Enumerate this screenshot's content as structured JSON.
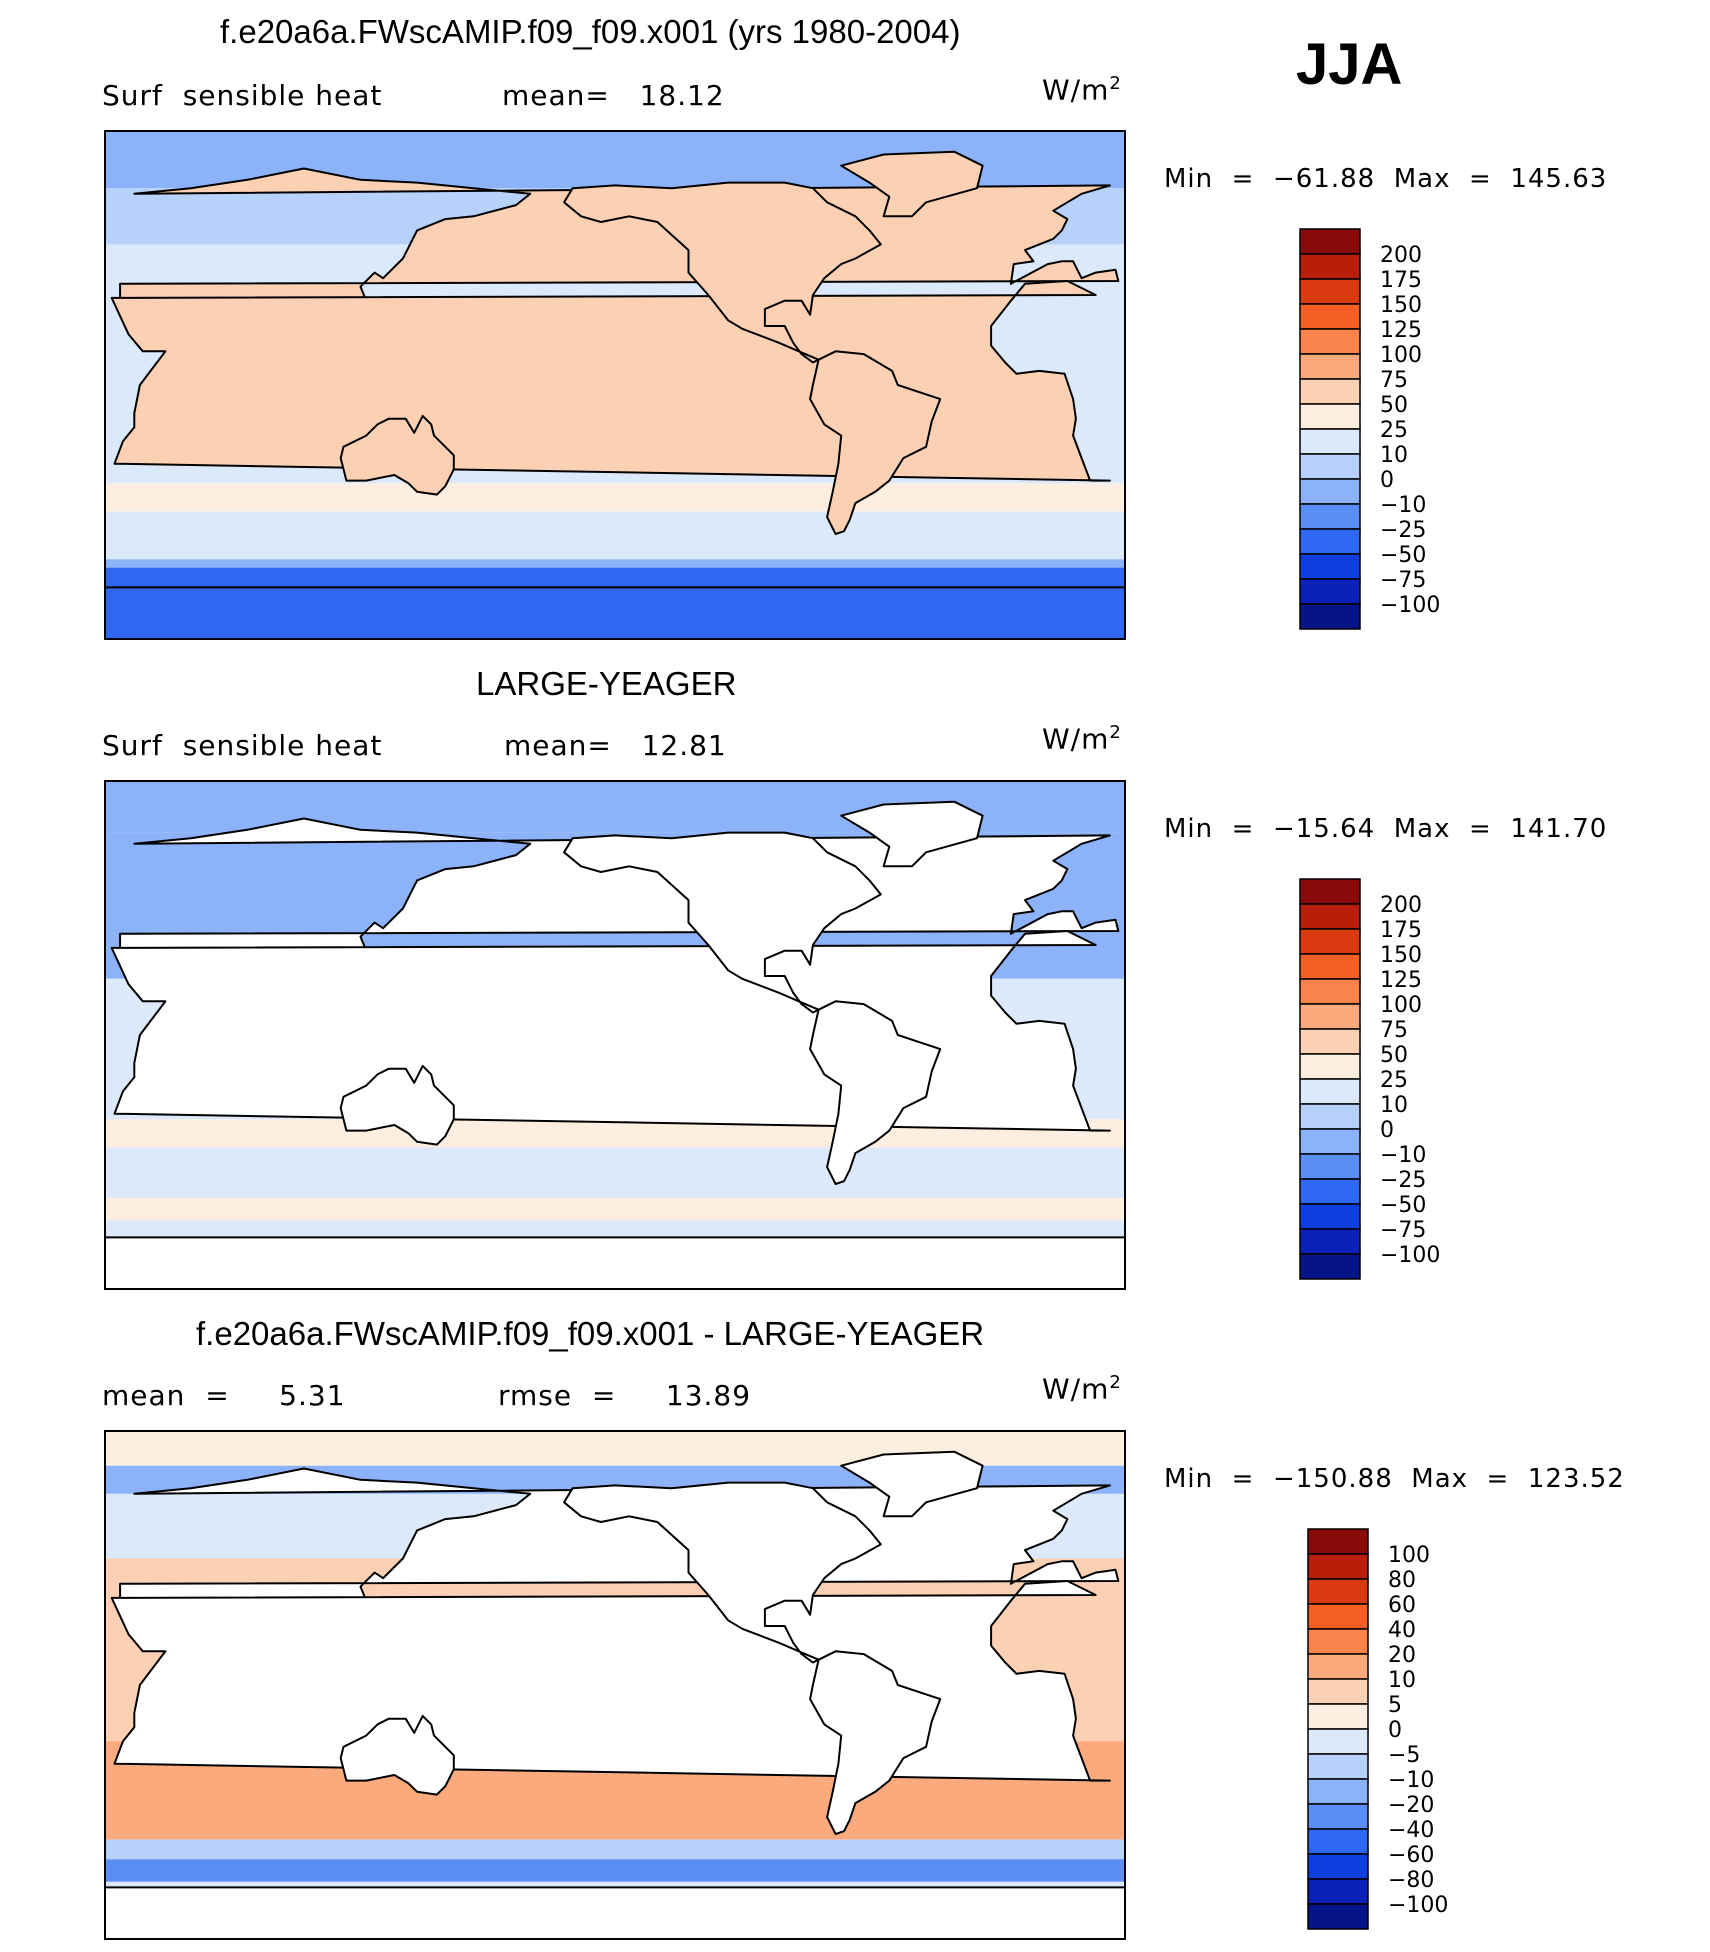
{
  "season": "JJA",
  "panels": [
    {
      "title": "f.e20a6a.FWscAMIP.f09_f09.x001 (yrs 1980-2004)",
      "left_label": "Surf  sensible heat",
      "mid_label": "mean=   18.12",
      "units": "W/m",
      "units_sup": "2",
      "min_max": "Min  =  −61.88  Max  =  145.63",
      "land": "filled",
      "levels": [
        "200",
        "175",
        "150",
        "125",
        "100",
        "75",
        "50",
        "25",
        "10",
        "0",
        "−10",
        "−25",
        "−50",
        "−75",
        "−100"
      ],
      "colors": [
        "#8a0a0a",
        "#b81e0a",
        "#d93a10",
        "#f55f25",
        "#f9834b",
        "#fbaa7e",
        "#fcd0b3",
        "#fdeedf",
        "#dbe9fb",
        "#b8d1fb",
        "#8cb3fa",
        "#5b8ef5",
        "#2e67f0",
        "#0f3ee0",
        "#0a22b8",
        "#06148a"
      ]
    },
    {
      "title": "LARGE-YEAGER",
      "left_label": "Surf  sensible heat",
      "mid_label": "mean=   12.81",
      "units": "W/m",
      "units_sup": "2",
      "min_max": "Min  =  −15.64  Max  =  141.70",
      "land": "white",
      "levels": [
        "200",
        "175",
        "150",
        "125",
        "100",
        "75",
        "50",
        "25",
        "10",
        "0",
        "−10",
        "−25",
        "−50",
        "−75",
        "−100"
      ],
      "colors": [
        "#8a0a0a",
        "#b81e0a",
        "#d93a10",
        "#f55f25",
        "#f9834b",
        "#fbaa7e",
        "#fcd0b3",
        "#fdeedf",
        "#dbe9fb",
        "#b8d1fb",
        "#8cb3fa",
        "#5b8ef5",
        "#2e67f0",
        "#0f3ee0",
        "#0a22b8",
        "#06148a"
      ]
    },
    {
      "title": "f.e20a6a.FWscAMIP.f09_f09.x001 - LARGE-YEAGER",
      "left_label": "mean  =     5.31",
      "mid_label": "rmse  =     13.89",
      "units": "W/m",
      "units_sup": "2",
      "min_max": "Min  =  −150.88  Max  =  123.52",
      "land": "white",
      "levels": [
        "100",
        "80",
        "60",
        "40",
        "20",
        "10",
        "5",
        "0",
        "−5",
        "−10",
        "−20",
        "−40",
        "−60",
        "−80",
        "−100"
      ],
      "colors": [
        "#8a0a0a",
        "#b81e0a",
        "#d93a10",
        "#f55f25",
        "#f9834b",
        "#fbaa7e",
        "#fcd0b3",
        "#fdeedf",
        "#dbe9fb",
        "#b8d1fb",
        "#8cb3fa",
        "#5b8ef5",
        "#2e67f0",
        "#0f3ee0",
        "#0a22b8",
        "#06148a"
      ]
    }
  ],
  "chart_data": [
    {
      "type": "heatmap",
      "title": "f.e20a6a.FWscAMIP.f09_f09.x001 (yrs 1980-2004)",
      "variable": "Surf  sensible heat",
      "units": "W/m2",
      "mean": 18.12,
      "min": -61.88,
      "max": 145.63,
      "contour_levels": [
        -100,
        -75,
        -50,
        -25,
        -10,
        0,
        10,
        25,
        50,
        75,
        100,
        125,
        150,
        175,
        200
      ]
    },
    {
      "type": "heatmap",
      "title": "LARGE-YEAGER",
      "variable": "Surf  sensible heat",
      "units": "W/m2",
      "mean": 12.81,
      "min": -15.64,
      "max": 141.7,
      "contour_levels": [
        -100,
        -75,
        -50,
        -25,
        -10,
        0,
        10,
        25,
        50,
        75,
        100,
        125,
        150,
        175,
        200
      ]
    },
    {
      "type": "heatmap",
      "title": "f.e20a6a.FWscAMIP.f09_f09.x001 - LARGE-YEAGER",
      "units": "W/m2",
      "mean": 5.31,
      "rmse": 13.89,
      "min": -150.88,
      "max": 123.52,
      "contour_levels": [
        -100,
        -80,
        -60,
        -40,
        -20,
        -10,
        -5,
        0,
        5,
        10,
        20,
        40,
        60,
        80,
        100
      ]
    }
  ]
}
